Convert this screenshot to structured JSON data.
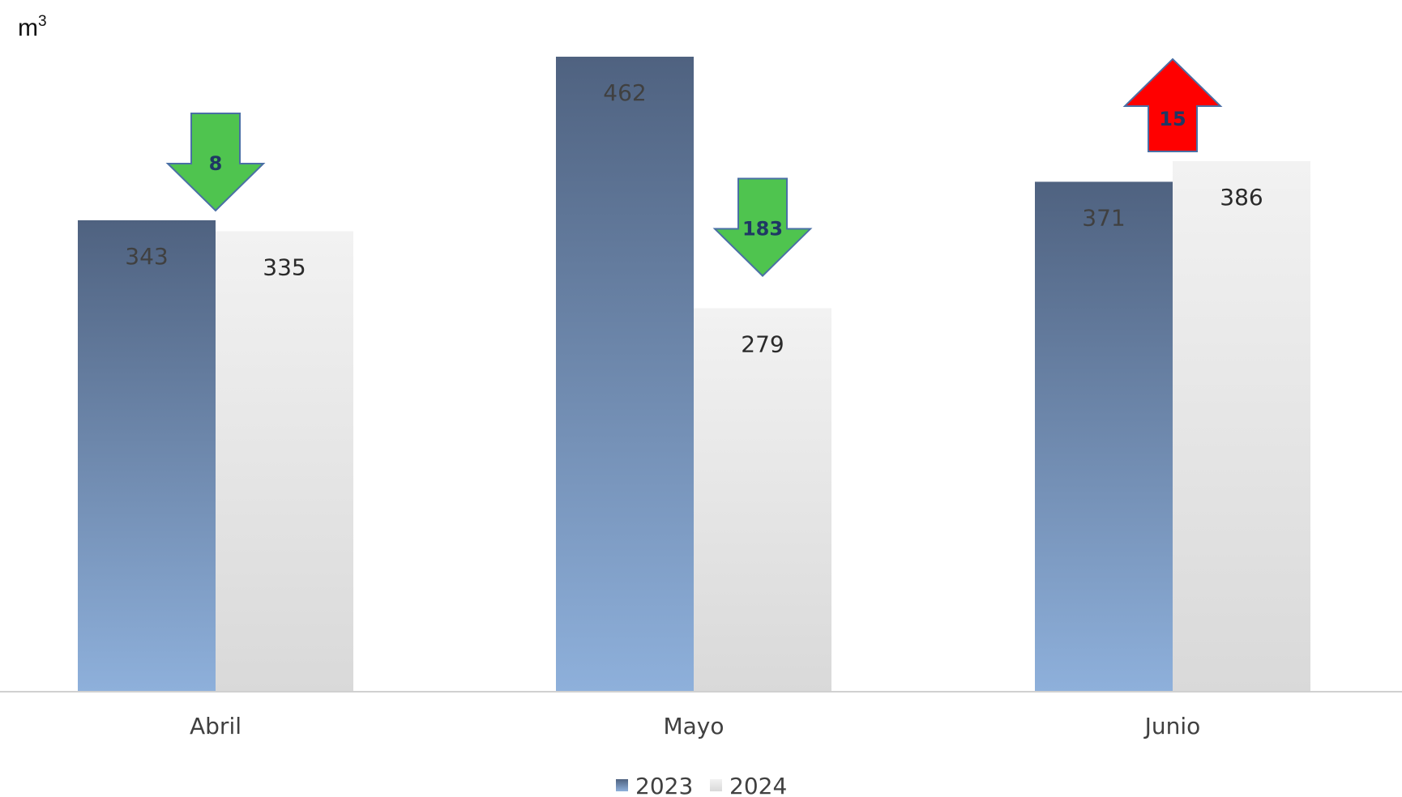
{
  "chart_data": {
    "type": "bar",
    "unit_label": "m",
    "unit_superscript": "3",
    "categories": [
      "Abril",
      "Mayo",
      "Junio"
    ],
    "series": [
      {
        "name": "2023",
        "values": [
          343,
          462,
          371
        ],
        "color_top": "#4f6280",
        "color_bottom": "#8eb0db"
      },
      {
        "name": "2024",
        "values": [
          335,
          279,
          386
        ],
        "color_top": "#f2f2f2",
        "color_bottom": "#d9d9d9"
      }
    ],
    "ylim": [
      0,
      462
    ],
    "grid": false,
    "legend_position": "bottom",
    "annotations": [
      {
        "category": "Abril",
        "direction": "down",
        "label": "8",
        "color": "#4fc44f",
        "text_color": "#1f3864"
      },
      {
        "category": "Mayo",
        "direction": "down",
        "label": "183",
        "color": "#4fc44f",
        "text_color": "#1f3864"
      },
      {
        "category": "Junio",
        "direction": "up",
        "label": "15",
        "color": "#ff0000",
        "text_color": "#1f3864"
      }
    ]
  }
}
